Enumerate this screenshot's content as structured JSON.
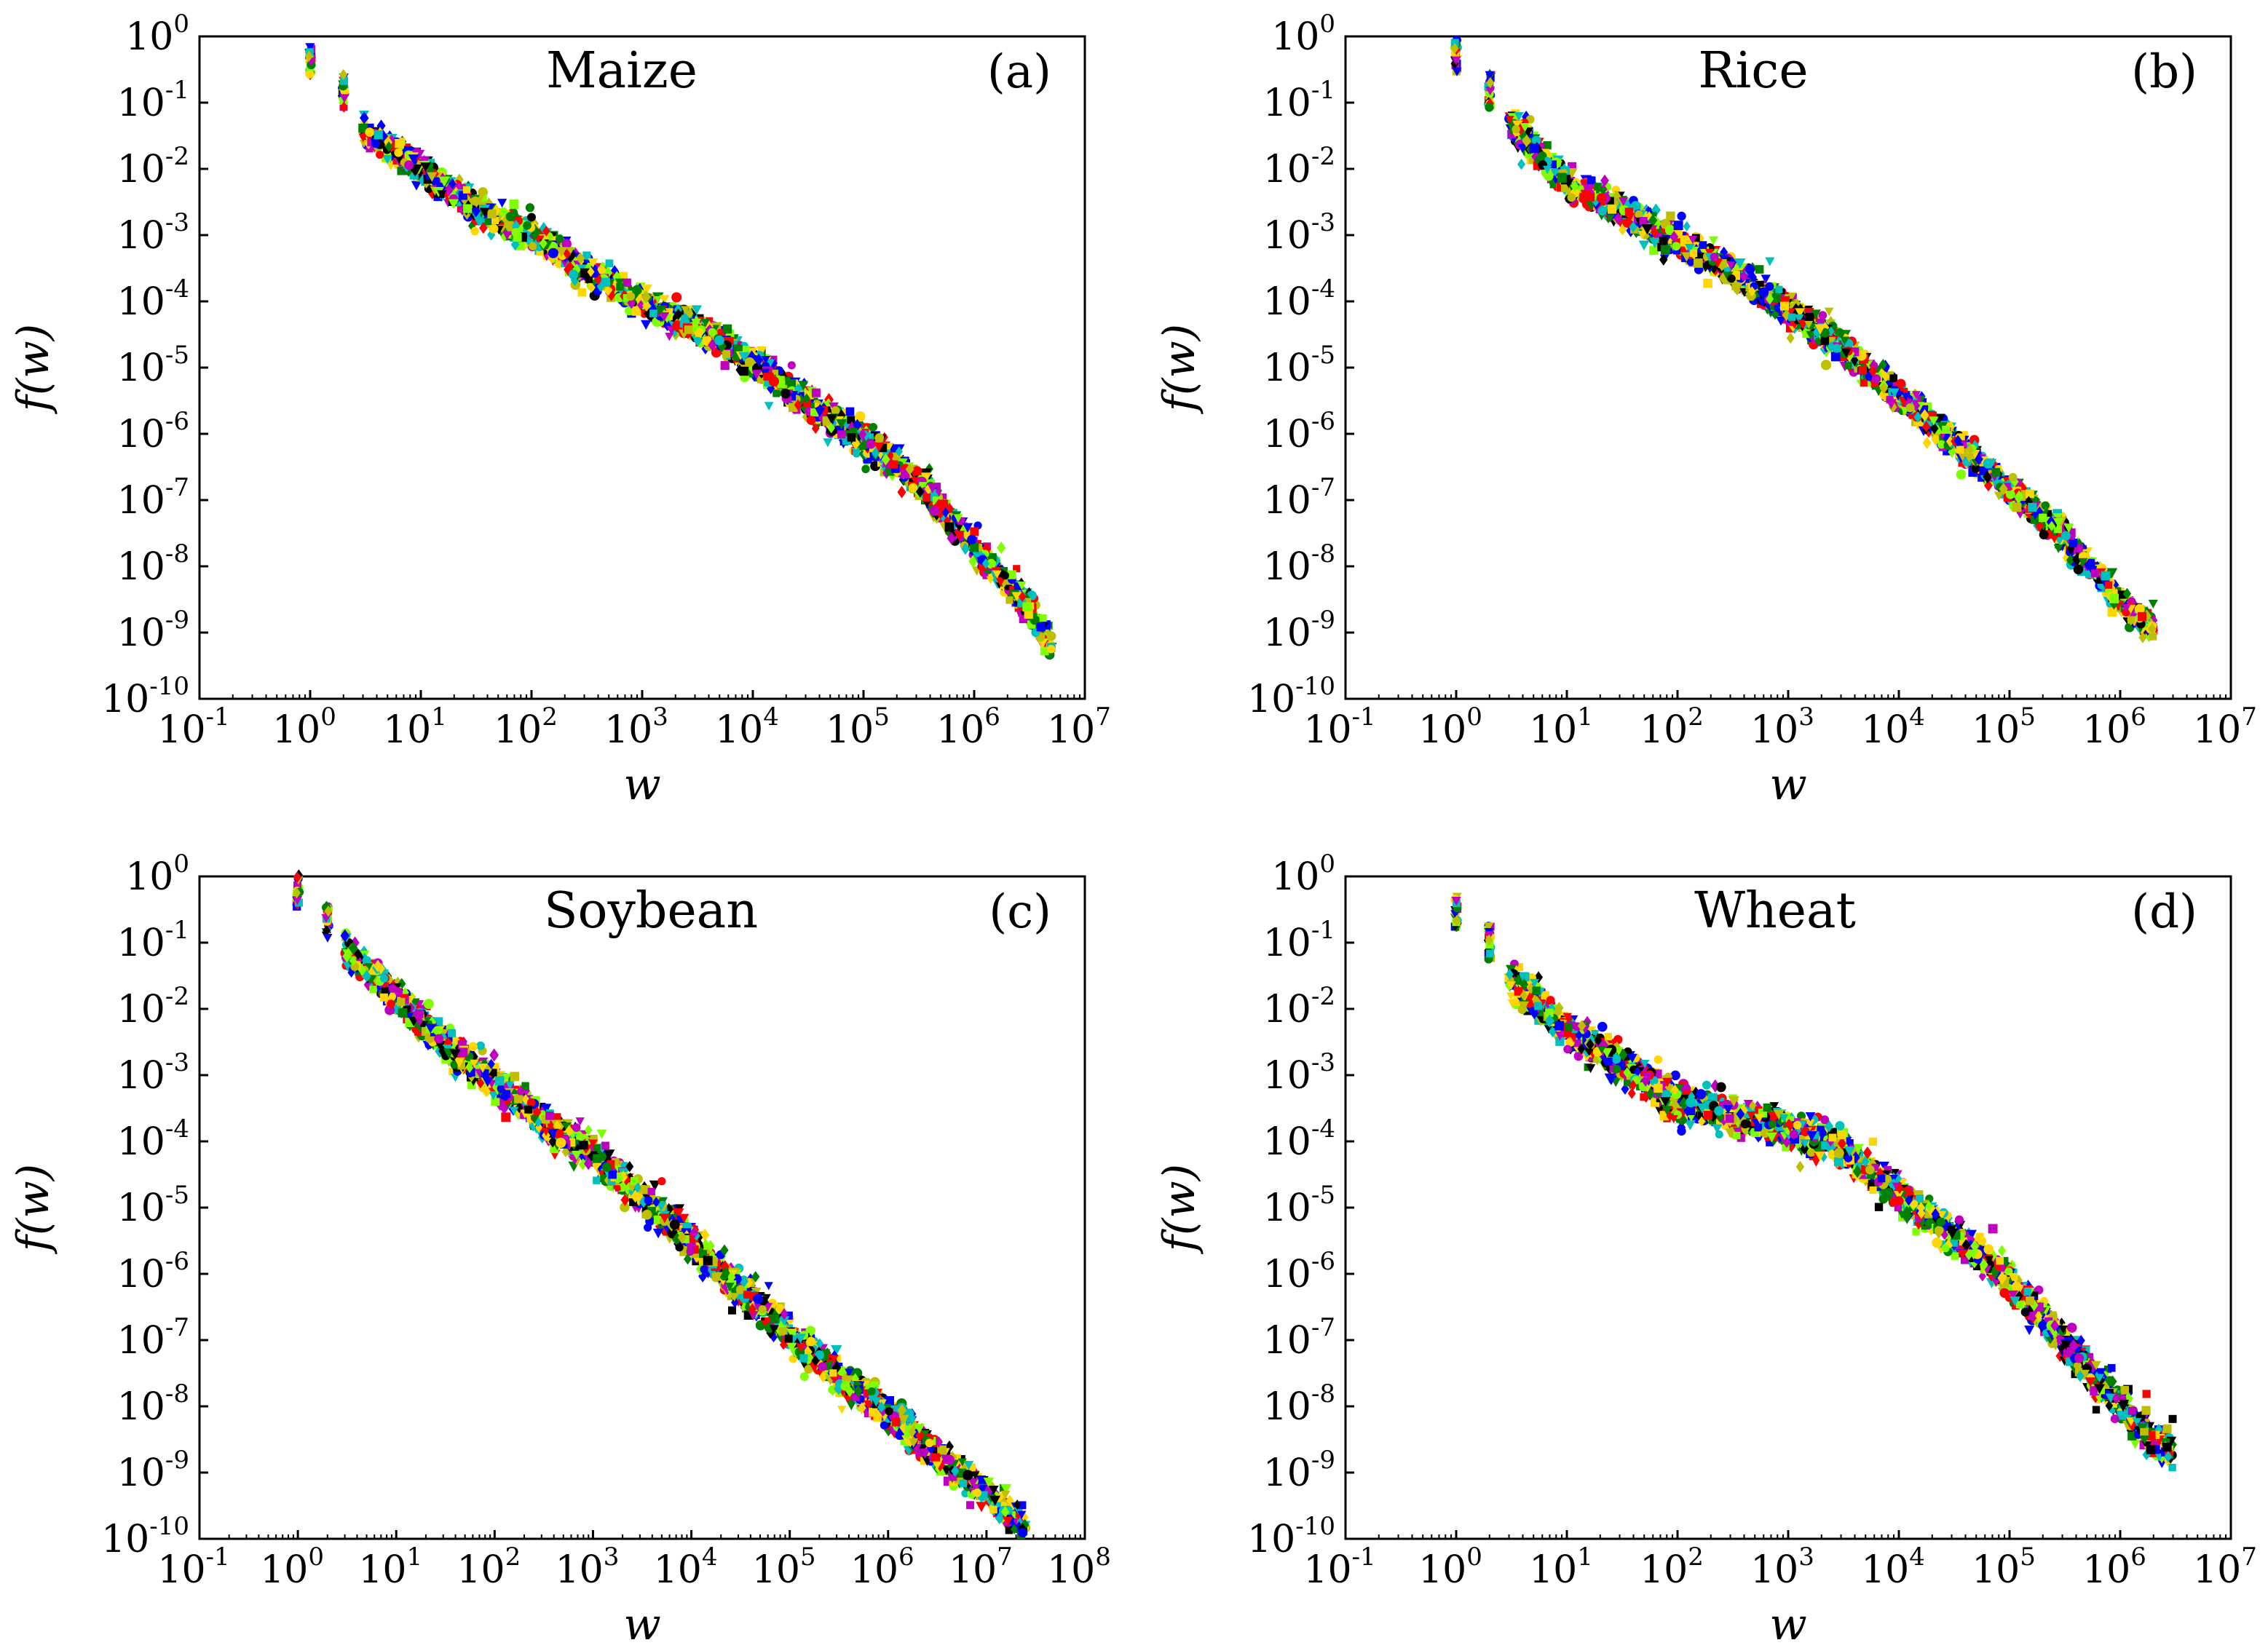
{
  "figure": {
    "series_colors": [
      "#0000ff",
      "#ff0000",
      "#008000",
      "#00bfbf",
      "#bf00bf",
      "#bfbf00",
      "#000000",
      "#ffd700",
      "#7fff00"
    ]
  },
  "chart_data": [
    {
      "type": "scatter",
      "panel": "(a)",
      "title": "Maize",
      "xlabel": "w",
      "ylabel": "f(w)",
      "xscale": "log",
      "yscale": "log",
      "xlim": [
        0.1,
        10000000
      ],
      "ylim": [
        1e-10,
        1
      ],
      "x_ticks": [
        "-1",
        "0",
        "1",
        "2",
        "3",
        "4",
        "5",
        "6",
        "7"
      ],
      "y_ticks": [
        "0",
        "-1",
        "-2",
        "-3",
        "-4",
        "-5",
        "-6",
        "-7",
        "-8",
        "-9",
        "-10"
      ],
      "tick_base": "10",
      "trend": [
        [
          1,
          0.4
        ],
        [
          2,
          0.15
        ],
        [
          3,
          0.04
        ],
        [
          10,
          0.01
        ],
        [
          30,
          0.0025
        ],
        [
          100,
          0.001
        ],
        [
          300,
          0.0003
        ],
        [
          1000,
          0.0001
        ],
        [
          3000,
          4e-05
        ],
        [
          10000,
          1.2e-05
        ],
        [
          30000,
          3e-06
        ],
        [
          100000,
          8e-07
        ],
        [
          300000,
          2e-07
        ],
        [
          1000000,
          2e-08
        ],
        [
          3000000,
          2.5e-09
        ],
        [
          5000000,
          6e-10
        ]
      ],
      "spread_decades": 0.35
    },
    {
      "type": "scatter",
      "panel": "(b)",
      "title": "Rice",
      "xlabel": "w",
      "ylabel": "f(w)",
      "xscale": "log",
      "yscale": "log",
      "xlim": [
        0.1,
        10000000
      ],
      "ylim": [
        1e-10,
        1
      ],
      "x_ticks": [
        "-1",
        "0",
        "1",
        "2",
        "3",
        "4",
        "5",
        "6",
        "7"
      ],
      "y_ticks": [
        "0",
        "-1",
        "-2",
        "-3",
        "-4",
        "-5",
        "-6",
        "-7",
        "-8",
        "-9",
        "-10"
      ],
      "tick_base": "10",
      "trend": [
        [
          1,
          0.5
        ],
        [
          2,
          0.15
        ],
        [
          3,
          0.05
        ],
        [
          10,
          0.006
        ],
        [
          30,
          0.0025
        ],
        [
          100,
          0.0008
        ],
        [
          300,
          0.0003
        ],
        [
          1000,
          8e-05
        ],
        [
          3000,
          2e-05
        ],
        [
          10000,
          4e-06
        ],
        [
          30000,
          8e-07
        ],
        [
          100000,
          1.5e-07
        ],
        [
          300000,
          3e-08
        ],
        [
          1000000,
          3e-09
        ],
        [
          1300000,
          2e-09
        ],
        [
          2000000,
          1.1e-09
        ]
      ],
      "spread_decades": 0.35
    },
    {
      "type": "scatter",
      "panel": "(c)",
      "title": "Soybean",
      "xlabel": "w",
      "ylabel": "f(w)",
      "xscale": "log",
      "yscale": "log",
      "xlim": [
        0.1,
        100000000
      ],
      "ylim": [
        1e-10,
        1
      ],
      "x_ticks": [
        "-1",
        "0",
        "1",
        "2",
        "3",
        "4",
        "5",
        "6",
        "7",
        "8"
      ],
      "y_ticks": [
        "0",
        "-1",
        "-2",
        "-3",
        "-4",
        "-5",
        "-6",
        "-7",
        "-8",
        "-9",
        "-10"
      ],
      "tick_base": "10",
      "trend": [
        [
          1,
          0.6
        ],
        [
          2,
          0.2
        ],
        [
          3,
          0.08
        ],
        [
          10,
          0.015
        ],
        [
          30,
          0.003
        ],
        [
          100,
          0.0008
        ],
        [
          300,
          0.0002
        ],
        [
          1000,
          6e-05
        ],
        [
          3000,
          1.5e-05
        ],
        [
          10000,
          3e-06
        ],
        [
          30000,
          6e-07
        ],
        [
          100000,
          1.2e-07
        ],
        [
          300000,
          3e-08
        ],
        [
          1000000,
          8e-09
        ],
        [
          3000000,
          2e-09
        ],
        [
          10000000,
          5e-10
        ],
        [
          25000000,
          1.5e-10
        ]
      ],
      "spread_decades": 0.4
    },
    {
      "type": "scatter",
      "panel": "(d)",
      "title": "Wheat",
      "xlabel": "w",
      "ylabel": "f(w)",
      "xscale": "log",
      "yscale": "log",
      "xlim": [
        0.1,
        10000000
      ],
      "ylim": [
        1e-10,
        1
      ],
      "x_ticks": [
        "-1",
        "0",
        "1",
        "2",
        "3",
        "4",
        "5",
        "6",
        "7"
      ],
      "y_ticks": [
        "0",
        "-1",
        "-2",
        "-3",
        "-4",
        "-5",
        "-6",
        "-7",
        "-8",
        "-9",
        "-10"
      ],
      "tick_base": "10",
      "trend": [
        [
          1,
          0.3
        ],
        [
          2,
          0.1
        ],
        [
          3,
          0.03
        ],
        [
          10,
          0.005
        ],
        [
          30,
          0.0015
        ],
        [
          100,
          0.0004
        ],
        [
          300,
          0.00025
        ],
        [
          1000,
          0.00015
        ],
        [
          3000,
          8e-05
        ],
        [
          10000,
          1.5e-05
        ],
        [
          30000,
          4e-06
        ],
        [
          100000,
          8e-07
        ],
        [
          300000,
          1e-07
        ],
        [
          1000000,
          1e-08
        ],
        [
          2000000,
          3e-09
        ],
        [
          3000000,
          2.3e-09
        ]
      ],
      "spread_decades": 0.4
    }
  ]
}
